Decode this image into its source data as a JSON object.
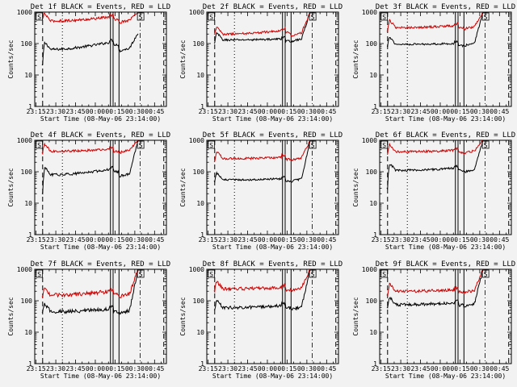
{
  "colors": {
    "background": "#f2f2f2",
    "events": "#000000",
    "lld": "#cc0000"
  },
  "chart_data": [
    {
      "type": "line",
      "title": "Det 1f BLACK = Events, RED = LLD",
      "xlabel": "Start Time (08-May-06 23:14:00)",
      "ylabel": "Counts/sec",
      "x_tick_labels": [
        "23:15",
        "23:30",
        "23:45",
        "00:00",
        "00:15",
        "00:30",
        "00:45"
      ],
      "x_ticks_min": [
        1,
        16,
        31,
        46,
        61,
        76,
        91
      ],
      "xlim_min": [
        0,
        100
      ],
      "y_tick_labels": [
        "1",
        "10",
        "100",
        "1000"
      ],
      "ylim": [
        1,
        1000
      ],
      "yscale": "log",
      "markers": [
        "S",
        "S"
      ],
      "series": [
        {
          "name": "Events",
          "level_lo": 65,
          "level_hi": 110,
          "dip": 20,
          "tail": 220,
          "noise": 0.04
        },
        {
          "name": "LLD",
          "level_lo": 520,
          "level_hi": 700,
          "dip": 600,
          "tail": 1000,
          "noise": 0.04
        }
      ]
    },
    {
      "type": "line",
      "title": "Det 2f BLACK = Events, RED = LLD",
      "xlabel": "Start Time (08-May-06 23:14:00)",
      "ylabel": "Counts/sec",
      "x_tick_labels": [
        "23:15",
        "23:30",
        "23:45",
        "00:00",
        "00:15",
        "00:30",
        "00:45"
      ],
      "x_ticks_min": [
        1,
        16,
        31,
        46,
        61,
        76,
        91
      ],
      "xlim_min": [
        0,
        100
      ],
      "y_tick_labels": [
        "1",
        "10",
        "100",
        "1000"
      ],
      "ylim": [
        1,
        1000
      ],
      "yscale": "log",
      "markers": [
        "S",
        "S"
      ],
      "series": [
        {
          "name": "Events",
          "level_lo": 130,
          "level_hi": 140,
          "dip": 100,
          "tail": 1000,
          "noise": 0.03
        },
        {
          "name": "LLD",
          "level_lo": 200,
          "level_hi": 260,
          "dip": 200,
          "tail": 1000,
          "noise": 0.035
        }
      ]
    },
    {
      "type": "line",
      "title": "Det 3f BLACK = Events, RED = LLD",
      "xlabel": "Start Time (08-May-06 23:14:00)",
      "ylabel": "Counts/sec",
      "x_tick_labels": [
        "23:15",
        "23:30",
        "23:45",
        "00:00",
        "00:15",
        "00:30",
        "00:45"
      ],
      "x_ticks_min": [
        1,
        16,
        31,
        46,
        61,
        76,
        91
      ],
      "xlim_min": [
        0,
        100
      ],
      "y_tick_labels": [
        "1",
        "10",
        "100",
        "1000"
      ],
      "ylim": [
        1,
        1000
      ],
      "yscale": "log",
      "markers": [
        "S",
        "S"
      ],
      "series": [
        {
          "name": "Events",
          "level_lo": 95,
          "level_hi": 100,
          "dip": 80,
          "tail": 1000,
          "noise": 0.03
        },
        {
          "name": "LLD",
          "level_lo": 320,
          "level_hi": 370,
          "dip": 250,
          "tail": 1000,
          "noise": 0.035
        }
      ]
    },
    {
      "type": "line",
      "title": "Det 4f BLACK = Events, RED = LLD",
      "xlabel": "Start Time (08-May-06 23:14:00)",
      "ylabel": "Counts/sec",
      "x_tick_labels": [
        "23:15",
        "23:30",
        "23:45",
        "00:00",
        "00:15",
        "00:30",
        "00:45"
      ],
      "x_ticks_min": [
        1,
        16,
        31,
        46,
        61,
        76,
        91
      ],
      "xlim_min": [
        0,
        100
      ],
      "y_tick_labels": [
        "1",
        "10",
        "100",
        "1000"
      ],
      "ylim": [
        1,
        1000
      ],
      "yscale": "log",
      "markers": [
        "S",
        "S"
      ],
      "series": [
        {
          "name": "Events",
          "level_lo": 80,
          "level_hi": 120,
          "dip": 20,
          "tail": 1000,
          "noise": 0.04
        },
        {
          "name": "LLD",
          "level_lo": 450,
          "level_hi": 520,
          "dip": 400,
          "tail": 1000,
          "noise": 0.035
        }
      ]
    },
    {
      "type": "line",
      "title": "Det 5f BLACK = Events, RED = LLD",
      "xlabel": "Start Time (08-May-06 23:14:00)",
      "ylabel": "Counts/sec",
      "x_tick_labels": [
        "23:15",
        "23:30",
        "23:45",
        "00:00",
        "00:15",
        "00:30",
        "00:45"
      ],
      "x_ticks_min": [
        1,
        16,
        31,
        46,
        61,
        76,
        91
      ],
      "xlim_min": [
        0,
        100
      ],
      "y_tick_labels": [
        "1",
        "10",
        "100",
        "1000"
      ],
      "ylim": [
        1,
        1000
      ],
      "yscale": "log",
      "markers": [
        "S",
        "S"
      ],
      "series": [
        {
          "name": "Events",
          "level_lo": 55,
          "level_hi": 60,
          "dip": 50,
          "tail": 1000,
          "noise": 0.03
        },
        {
          "name": "LLD",
          "level_lo": 260,
          "level_hi": 290,
          "dip": 200,
          "tail": 1000,
          "noise": 0.035
        }
      ]
    },
    {
      "type": "line",
      "title": "Det 6f BLACK = Events, RED = LLD",
      "xlabel": "Start Time (08-May-06 23:14:00)",
      "ylabel": "Counts/sec",
      "x_tick_labels": [
        "23:15",
        "23:30",
        "23:45",
        "00:00",
        "00:15",
        "00:30",
        "00:45"
      ],
      "x_ticks_min": [
        1,
        16,
        31,
        46,
        61,
        76,
        91
      ],
      "xlim_min": [
        0,
        100
      ],
      "y_tick_labels": [
        "1",
        "10",
        "100",
        "1000"
      ],
      "ylim": [
        1,
        1000
      ],
      "yscale": "log",
      "markers": [
        "S",
        "S"
      ],
      "series": [
        {
          "name": "Events",
          "level_lo": 110,
          "level_hi": 130,
          "dip": 30,
          "tail": 1000,
          "noise": 0.035
        },
        {
          "name": "LLD",
          "level_lo": 430,
          "level_hi": 480,
          "dip": 350,
          "tail": 1000,
          "noise": 0.035
        }
      ]
    },
    {
      "type": "line",
      "title": "Det 7f BLACK = Events, RED = LLD",
      "xlabel": "Start Time (08-May-06 23:14:00)",
      "ylabel": "Counts/sec",
      "x_tick_labels": [
        "23:15",
        "23:30",
        "23:45",
        "00:00",
        "00:15",
        "00:30",
        "00:45"
      ],
      "x_ticks_min": [
        1,
        16,
        31,
        46,
        61,
        76,
        91
      ],
      "xlim_min": [
        0,
        100
      ],
      "y_tick_labels": [
        "1",
        "10",
        "100",
        "1000"
      ],
      "ylim": [
        1,
        1000
      ],
      "yscale": "log",
      "markers": [
        "S",
        "S"
      ],
      "series": [
        {
          "name": "Events",
          "level_lo": 45,
          "level_hi": 55,
          "dip": 40,
          "tail": 1000,
          "noise": 0.06
        },
        {
          "name": "LLD",
          "level_lo": 150,
          "level_hi": 200,
          "dip": 130,
          "tail": 1000,
          "noise": 0.06
        }
      ]
    },
    {
      "type": "line",
      "title": "Det 8f BLACK = Events, RED = LLD",
      "xlabel": "Start Time (08-May-06 23:14:00)",
      "ylabel": "Counts/sec",
      "x_tick_labels": [
        "23:15",
        "23:30",
        "23:45",
        "00:00",
        "00:15",
        "00:30",
        "00:45"
      ],
      "x_ticks_min": [
        1,
        16,
        31,
        46,
        61,
        76,
        91
      ],
      "xlim_min": [
        0,
        100
      ],
      "y_tick_labels": [
        "1",
        "10",
        "100",
        "1000"
      ],
      "ylim": [
        1,
        1000
      ],
      "yscale": "log",
      "markers": [
        "S",
        "S"
      ],
      "series": [
        {
          "name": "Events",
          "level_lo": 60,
          "level_hi": 70,
          "dip": 50,
          "tail": 1000,
          "noise": 0.05
        },
        {
          "name": "LLD",
          "level_lo": 240,
          "level_hi": 260,
          "dip": 200,
          "tail": 1000,
          "noise": 0.05
        }
      ]
    },
    {
      "type": "line",
      "title": "Det 9f BLACK = Events, RED = LLD",
      "xlabel": "Start Time (08-May-06 23:14:00)",
      "ylabel": "Counts/sec",
      "x_tick_labels": [
        "23:15",
        "23:30",
        "23:45",
        "00:00",
        "00:15",
        "00:30",
        "00:45"
      ],
      "x_ticks_min": [
        1,
        16,
        31,
        46,
        61,
        76,
        91
      ],
      "xlim_min": [
        0,
        100
      ],
      "y_tick_labels": [
        "1",
        "10",
        "100",
        "1000"
      ],
      "ylim": [
        1,
        1000
      ],
      "yscale": "log",
      "markers": [
        "S",
        "S"
      ],
      "series": [
        {
          "name": "Events",
          "level_lo": 75,
          "level_hi": 85,
          "dip": 60,
          "tail": 1000,
          "noise": 0.045
        },
        {
          "name": "LLD",
          "level_lo": 200,
          "level_hi": 220,
          "dip": 150,
          "tail": 1000,
          "noise": 0.045
        }
      ]
    }
  ]
}
